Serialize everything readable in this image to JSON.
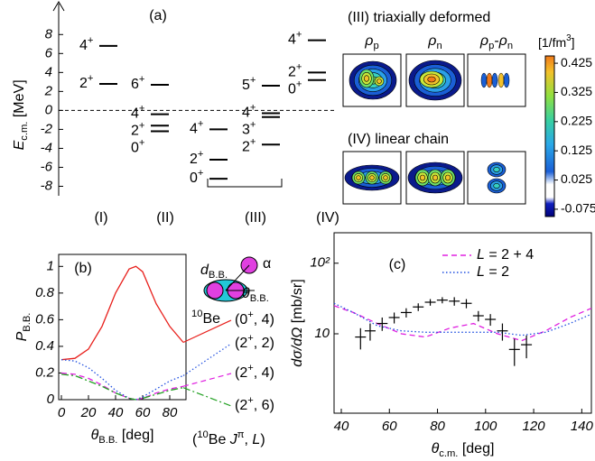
{
  "chart_data": [
    {
      "type": "levels",
      "panel_label": "(a)",
      "ylabel": [
        {
          "t": "E",
          "style": "italic"
        },
        {
          "t": "c.m.",
          "style": "sub"
        },
        {
          "t": " [MeV]"
        }
      ],
      "ylim": [
        -9,
        10.5
      ],
      "yticks": [
        -8,
        -6,
        -4,
        -2,
        0,
        2,
        4,
        6,
        8
      ],
      "reference_line": 0,
      "groups": [
        {
          "label": "(I)",
          "stacks": [
            [
              {
                "energy": 6.8,
                "label": [
                  {
                    "t": "4"
                  },
                  {
                    "t": "+",
                    "style": "sup"
                  }
                ]
              },
              {
                "energy": 2.8,
                "label": [
                  {
                    "t": "2"
                  },
                  {
                    "t": "+",
                    "style": "sup"
                  }
                ]
              }
            ]
          ]
        },
        {
          "label": "(II)",
          "stacks": [
            [
              {
                "energy": 2.7,
                "label": [
                  {
                    "t": "6"
                  },
                  {
                    "t": "+",
                    "style": "sup"
                  }
                ]
              },
              {
                "energy": -0.4,
                "label": [
                  {
                    "t": "4"
                  },
                  {
                    "t": "+",
                    "style": "sup"
                  }
                ]
              },
              {
                "energy": -1.6,
                "label": [
                  {
                    "t": "2"
                  },
                  {
                    "t": "+",
                    "style": "sup"
                  }
                ]
              },
              {
                "energy": -2.2,
                "label": [
                  {
                    "t": "0"
                  },
                  {
                    "t": "+",
                    "style": "sup"
                  }
                ]
              }
            ]
          ]
        },
        {
          "label": "(III)",
          "stacks": [
            [
              {
                "energy": -2.0,
                "label": [
                  {
                    "t": "4"
                  },
                  {
                    "t": "+",
                    "style": "sup"
                  }
                ]
              },
              {
                "energy": -5.2,
                "label": [
                  {
                    "t": "2"
                  },
                  {
                    "t": "+",
                    "style": "sup"
                  }
                ]
              },
              {
                "energy": -7.2,
                "label": [
                  {
                    "t": "0"
                  },
                  {
                    "t": "+",
                    "style": "sup"
                  }
                ]
              }
            ],
            [
              {
                "energy": 2.6,
                "label": [
                  {
                    "t": "5"
                  },
                  {
                    "t": "+",
                    "style": "sup"
                  }
                ]
              },
              {
                "energy": -0.3,
                "label": [
                  {
                    "t": "4"
                  },
                  {
                    "t": "+",
                    "style": "sup"
                  }
                ]
              },
              {
                "energy": -0.7,
                "label": [
                  {
                    "t": "3"
                  },
                  {
                    "t": "+",
                    "style": "sup"
                  }
                ]
              },
              {
                "energy": -3.6,
                "label": [
                  {
                    "t": "2"
                  },
                  {
                    "t": "+",
                    "style": "sup"
                  }
                ]
              }
            ]
          ]
        },
        {
          "label": "(IV)",
          "stacks": [
            [
              {
                "energy": 7.4,
                "label": [
                  {
                    "t": "4"
                  },
                  {
                    "t": "+",
                    "style": "sup"
                  }
                ]
              },
              {
                "energy": 4.0,
                "label": [
                  {
                    "t": "2"
                  },
                  {
                    "t": "+",
                    "style": "sup"
                  }
                ]
              },
              {
                "energy": 3.2,
                "label": [
                  {
                    "t": "0"
                  },
                  {
                    "t": "+",
                    "style": "sup"
                  }
                ]
              }
            ]
          ]
        }
      ]
    },
    {
      "type": "colormap",
      "groups": [
        {
          "title": "(III) triaxially deformed",
          "panels": [
            [
              {
                "t": "ρ",
                "style": "italic"
              },
              {
                "t": "p",
                "style": "sub"
              }
            ],
            [
              {
                "t": "ρ",
                "style": "italic"
              },
              {
                "t": "n",
                "style": "sub"
              }
            ],
            [
              {
                "t": "ρ",
                "style": "italic"
              },
              {
                "t": "p",
                "style": "sub"
              },
              {
                "t": "-"
              },
              {
                "t": "ρ",
                "style": "italic"
              },
              {
                "t": "n",
                "style": "sub"
              }
            ]
          ]
        },
        {
          "title": "(IV) linear chain"
        }
      ],
      "colorbar": {
        "label": [
          {
            "t": "[1/fm"
          },
          {
            "t": "3",
            "style": "sup"
          },
          {
            "t": "]"
          }
        ],
        "lim": [
          -0.1,
          0.45
        ],
        "ticks": [
          0.425,
          0.325,
          0.225,
          0.125,
          0.025,
          -0.075
        ]
      }
    },
    {
      "type": "line",
      "panel_label": "(b)",
      "xlabel": [
        {
          "t": "θ",
          "style": "italic"
        },
        {
          "t": "B.B.",
          "style": "sub"
        },
        {
          "t": " [deg]"
        }
      ],
      "ylabel": [
        {
          "t": "P",
          "style": "italic"
        },
        {
          "t": "B.B.",
          "style": "sub"
        }
      ],
      "xlim": [
        -2,
        92
      ],
      "xticks": [
        0,
        20,
        40,
        60,
        80
      ],
      "ylim": [
        0,
        1.09
      ],
      "yticks": [
        0,
        0.2,
        0.4,
        0.6,
        0.8,
        1
      ],
      "x": [
        0,
        10,
        20,
        30,
        40,
        50,
        55,
        60,
        70,
        80,
        90
      ],
      "series": [
        {
          "name": [
            {
              "t": "(0"
            },
            {
              "t": "+",
              "style": "sup"
            },
            {
              "t": ", 4)"
            }
          ],
          "color": "#e8201c",
          "dash": "solid",
          "values": [
            0.3,
            0.31,
            0.38,
            0.55,
            0.8,
            0.98,
            1.0,
            0.96,
            0.72,
            0.55,
            0.43
          ]
        },
        {
          "name": [
            {
              "t": "(2"
            },
            {
              "t": "+",
              "style": "sup"
            },
            {
              "t": ", 2)"
            }
          ],
          "color": "#1f4fe0",
          "dash": "dotted",
          "values": [
            0.3,
            0.29,
            0.24,
            0.16,
            0.07,
            0.01,
            0,
            0.02,
            0.08,
            0.14,
            0.18
          ]
        },
        {
          "name": [
            {
              "t": "(2"
            },
            {
              "t": "+",
              "style": "sup"
            },
            {
              "t": ", 4)"
            }
          ],
          "color": "#e020e0",
          "dash": "dashed",
          "values": [
            0.2,
            0.19,
            0.16,
            0.11,
            0.05,
            0.01,
            0,
            0.01,
            0.05,
            0.08,
            0.1
          ]
        },
        {
          "name": [
            {
              "t": "(2"
            },
            {
              "t": "+",
              "style": "sup"
            },
            {
              "t": ", 6)"
            }
          ],
          "color": "#22a022",
          "dash": "dashdot",
          "values": [
            0.19,
            0.18,
            0.14,
            0.1,
            0.05,
            0.01,
            0,
            0.01,
            0.04,
            0.07,
            0.09
          ]
        }
      ],
      "key_label": [
        {
          "t": "("
        },
        {
          "t": "10",
          "style": "sup"
        },
        {
          "t": "Be "
        },
        {
          "t": "J",
          "style": "italic"
        },
        {
          "t": "π",
          "style": "sup"
        },
        {
          "t": ", "
        },
        {
          "t": "L",
          "style": "italic"
        },
        {
          "t": ")"
        }
      ],
      "inset": {
        "distance": [
          {
            "t": "d",
            "style": "italic"
          },
          {
            "t": "B.B.",
            "style": "sub"
          }
        ],
        "alpha": [
          {
            "t": "α"
          }
        ],
        "angle": [
          {
            "t": "θ",
            "style": "italic"
          },
          {
            "t": "B.B.",
            "style": "sub"
          }
        ],
        "core": [
          {
            "t": "10",
            "style": "sup"
          },
          {
            "t": "Be"
          }
        ]
      }
    },
    {
      "type": "line",
      "panel_label": "(c)",
      "log_y": true,
      "legend": "upper right",
      "xlabel": [
        {
          "t": "θ",
          "style": "italic"
        },
        {
          "t": "c.m.",
          "style": "sub"
        },
        {
          "t": " [deg]"
        }
      ],
      "ylabel": [
        {
          "t": "dσ/dΩ",
          "style": "italic"
        },
        {
          "t": " [mb/sr]"
        }
      ],
      "xlim": [
        37,
        144
      ],
      "xticks": [
        40,
        60,
        80,
        100,
        120,
        140
      ],
      "ylim": [
        0.75,
        270
      ],
      "yticks": [
        10,
        {
          "value": 100,
          "label": "10²"
        }
      ],
      "x": [
        37,
        45,
        55,
        65,
        75,
        85,
        95,
        105,
        115,
        125,
        135,
        144
      ],
      "series": [
        {
          "name": [
            {
              "t": "L",
              "style": "italic"
            },
            {
              "t": " = 2 + 4"
            }
          ],
          "color": "#e020e0",
          "dash": "dashed",
          "values": [
            25,
            20,
            14,
            10,
            9,
            12,
            14,
            10,
            8,
            11,
            17,
            23
          ]
        },
        {
          "name": [
            {
              "t": "L",
              "style": "italic"
            },
            {
              "t": " = 2"
            }
          ],
          "color": "#1f4fe0",
          "dash": "dotted",
          "values": [
            27,
            20,
            13,
            11,
            10.5,
            10.5,
            10.5,
            10.5,
            9.5,
            10.5,
            14,
            19
          ]
        }
      ],
      "data_points": {
        "x": [
          48,
          52,
          57,
          62,
          67,
          72,
          77,
          82,
          87,
          92,
          97,
          102,
          107,
          112,
          117
        ],
        "values": [
          9,
          11,
          14,
          17,
          20,
          24,
          28,
          30,
          29,
          27,
          18,
          16,
          11,
          6,
          7
        ],
        "errors": [
          3,
          3,
          3,
          3,
          3,
          3,
          3,
          3,
          4,
          4,
          3,
          3,
          3,
          2.5,
          2.5
        ]
      }
    }
  ]
}
